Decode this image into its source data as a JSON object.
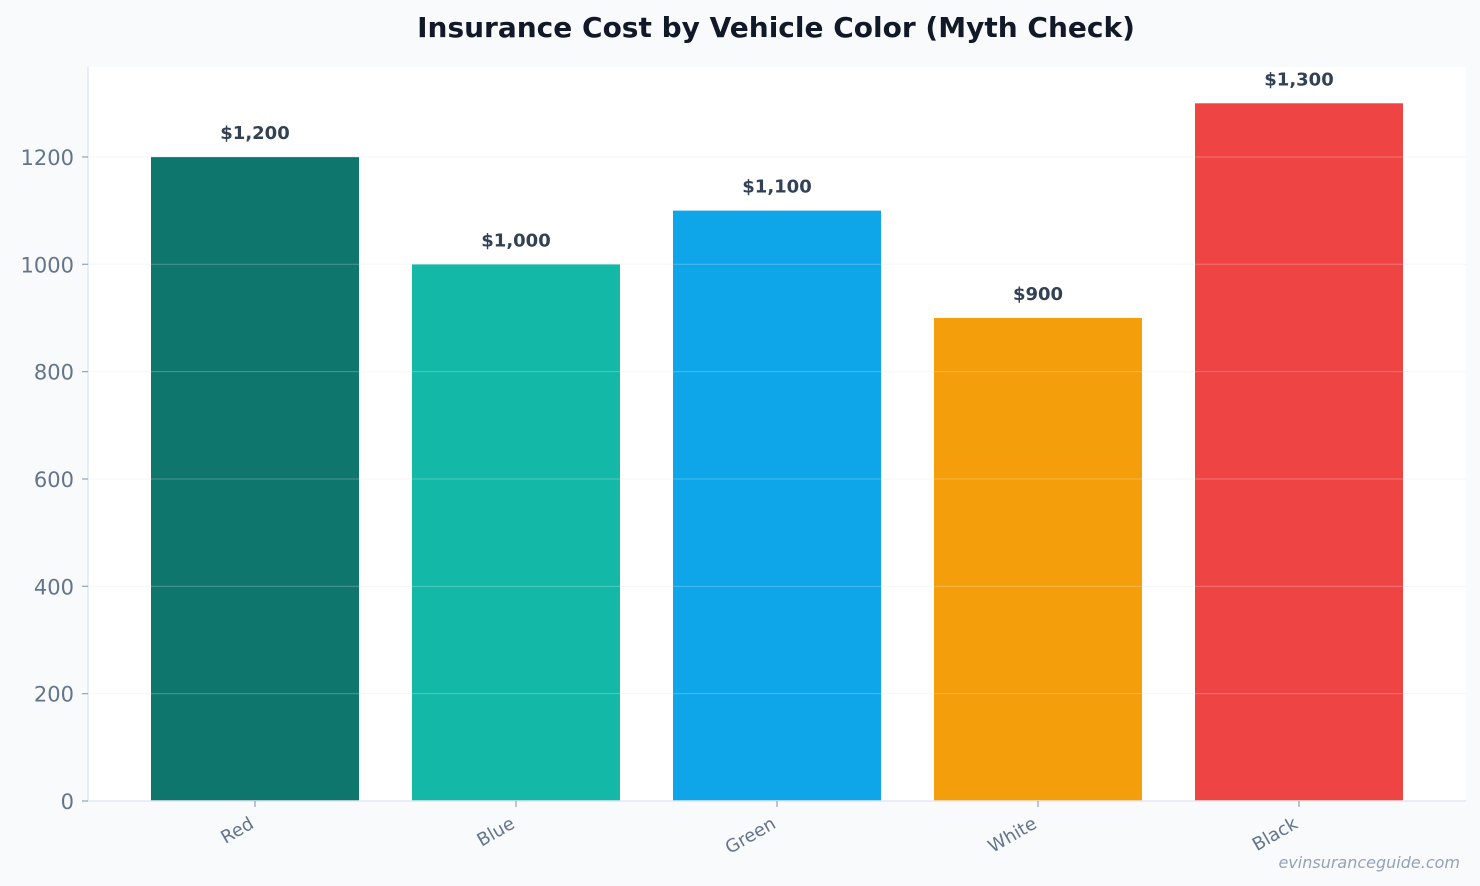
{
  "chart_data": {
    "type": "bar",
    "title": "Insurance Cost by Vehicle Color (Myth Check)",
    "categories": [
      "Red",
      "Blue",
      "Green",
      "White",
      "Black"
    ],
    "values": [
      1200,
      1000,
      1100,
      900,
      1300
    ],
    "value_labels": [
      "$1,200",
      "$1,000",
      "$1,100",
      "$900",
      "$1,300"
    ],
    "bar_colors": [
      "#0f766e",
      "#14b8a6",
      "#0ea5e9",
      "#f59e0b",
      "#ef4444"
    ],
    "xlabel": "",
    "ylabel": "",
    "ylim": [
      0,
      1300
    ],
    "yticks": [
      0,
      200,
      400,
      600,
      800,
      1000,
      1200
    ],
    "ytick_labels": [
      "0",
      "200",
      "400",
      "600",
      "800",
      "1000",
      "1200"
    ],
    "grid": true,
    "legend": "none"
  },
  "watermark": "evinsuranceguide.com",
  "colors": {
    "page_background": "#f8fafc",
    "plot_background": "#ffffff",
    "title": "#111827",
    "tick_text": "#64748b",
    "value_text": "#334155",
    "axis_line": "#cbd5e1",
    "grid": "#e2e8f0",
    "watermark": "#94a3b8"
  }
}
